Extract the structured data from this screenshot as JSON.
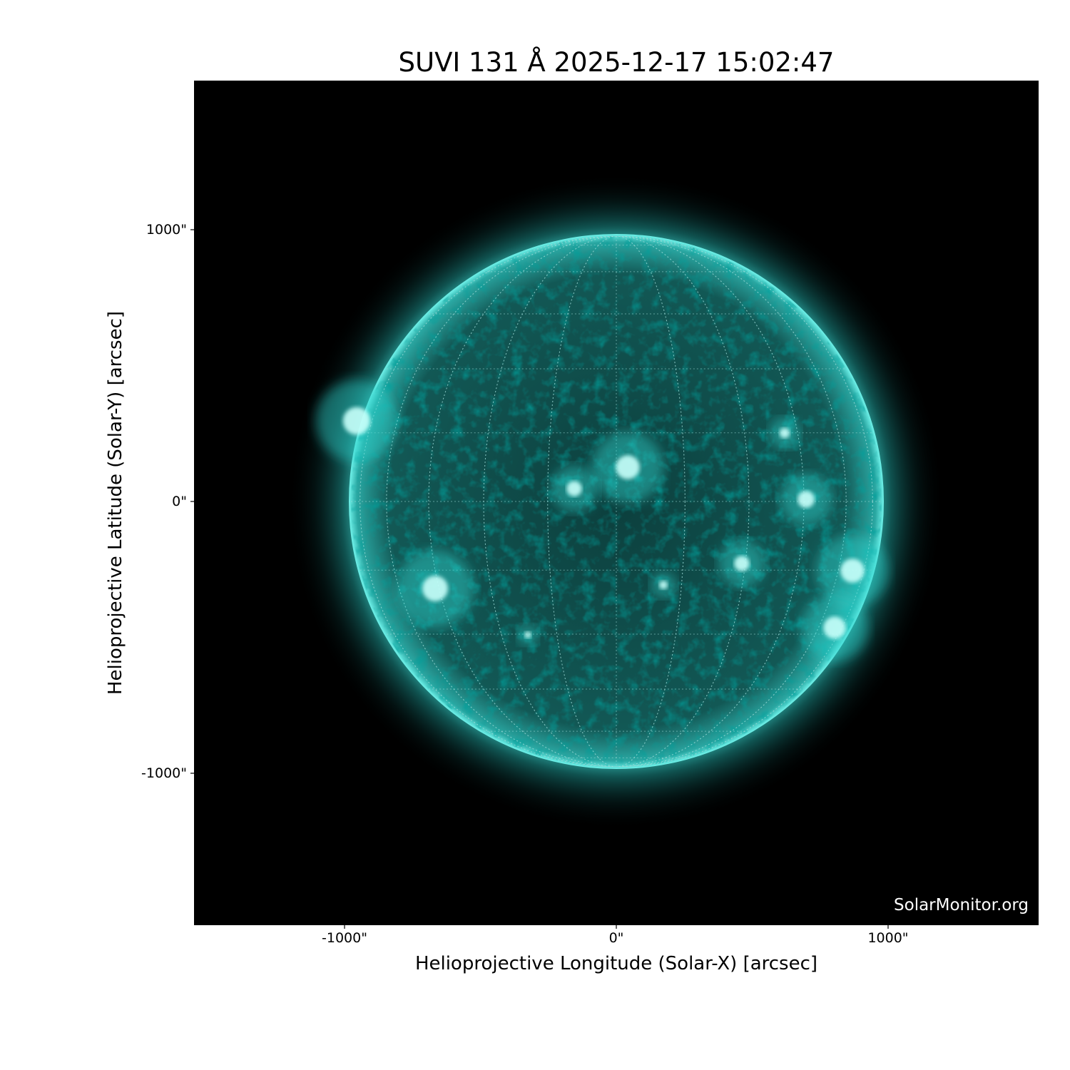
{
  "chart_data": {
    "type": "image",
    "title": "SUVI 131 Å 2025-12-17 15:02:47",
    "xlabel": "Helioprojective Longitude (Solar-X) [arcsec]",
    "ylabel": "Helioprojective Latitude (Solar-Y) [arcsec]",
    "x_ticks": [
      {
        "value": -1000,
        "label": "-1000\""
      },
      {
        "value": 0,
        "label": "0\""
      },
      {
        "value": 1000,
        "label": "1000\""
      }
    ],
    "y_ticks": [
      {
        "value": 1000,
        "label": "1000\""
      },
      {
        "value": 0,
        "label": "0\""
      },
      {
        "value": -1000,
        "label": "-1000\""
      }
    ],
    "xlim": [
      -1554,
      1554
    ],
    "ylim": [
      -1554,
      1554
    ],
    "colormap": "black-to-cyan",
    "colors": {
      "background": "#000000",
      "disk": "#0b4a48",
      "bright": "#7ffff6"
    },
    "grid": "heliographic, dotted",
    "watermark": "SolarMonitor.org"
  }
}
